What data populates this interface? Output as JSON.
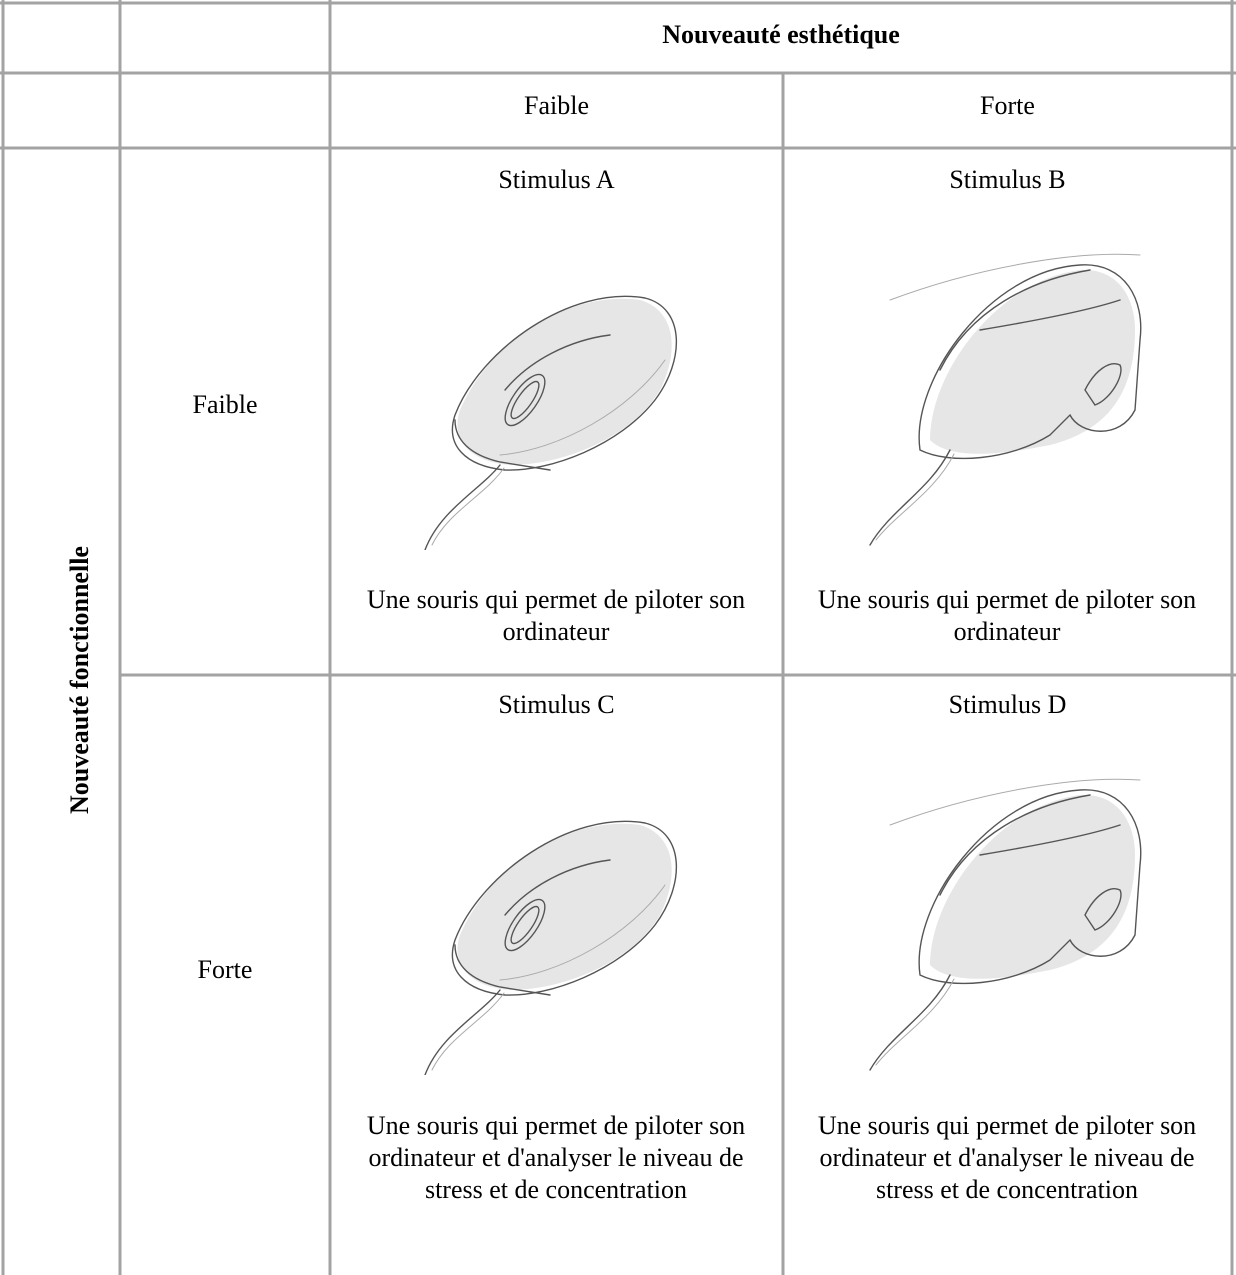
{
  "table": {
    "header": "Nouveauté esthétique",
    "column_labels": [
      "Faible",
      "Forte"
    ],
    "row_header": "Nouveauté fonctionnelle",
    "rows": [
      {
        "label": "Faible",
        "cells": [
          {
            "title": "Stimulus A",
            "description": "Une souris qui permet de piloter son ordinateur"
          },
          {
            "title": "Stimulus B",
            "description": "Une souris qui permet de piloter son ordinateur"
          }
        ]
      },
      {
        "label": "Forte",
        "cells": [
          {
            "title": "Stimulus C",
            "description": "Une souris qui permet de piloter son ordinateur et d'analyser le niveau de stress et de concentration"
          },
          {
            "title": "Stimulus D",
            "description": "Une souris qui permet de piloter son ordinateur et d'analyser le niveau de stress et de concentration"
          }
        ]
      }
    ]
  }
}
